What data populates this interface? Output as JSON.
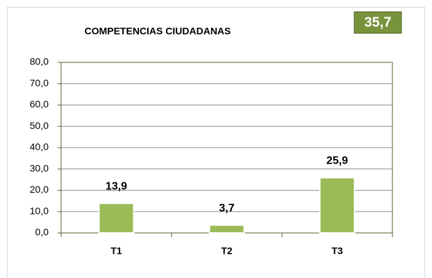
{
  "chart_data": {
    "type": "bar",
    "title": "COMPETENCIAS CIUDADANAS",
    "annotation": "35,7",
    "categories": [
      "T1",
      "T2",
      "T3"
    ],
    "values": [
      13.9,
      3.7,
      25.9
    ],
    "value_labels": [
      "13,9",
      "3,7",
      "25,9"
    ],
    "color": "#9bbb59",
    "ylim": [
      0,
      80
    ],
    "yticks": [
      {
        "value": 0,
        "label": "0,0"
      },
      {
        "value": 10,
        "label": "10,0"
      },
      {
        "value": 20,
        "label": "20,0"
      },
      {
        "value": 30,
        "label": "30,0"
      },
      {
        "value": 40,
        "label": "40,0"
      },
      {
        "value": 50,
        "label": "50,0"
      },
      {
        "value": 60,
        "label": "60,0"
      },
      {
        "value": 70,
        "label": "70,0"
      },
      {
        "value": 80,
        "label": "80,0"
      }
    ],
    "grid": true
  }
}
